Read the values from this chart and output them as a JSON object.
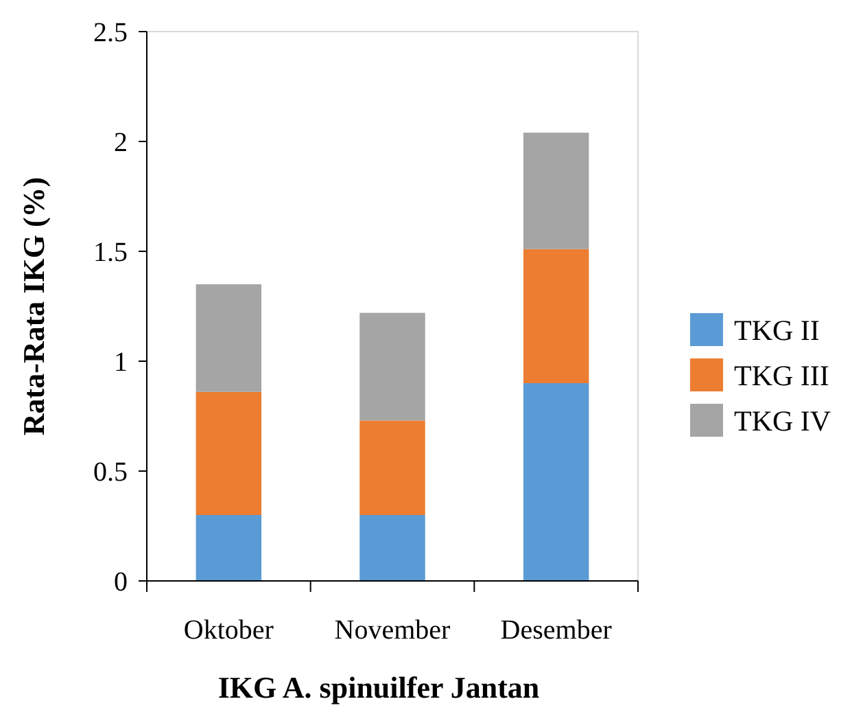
{
  "chart_data": {
    "type": "bar",
    "stacked": true,
    "xlabel": "IKG A. spinuilfer Jantan",
    "ylabel": "Rata-Rata IKG (%)",
    "categories": [
      "Oktober",
      "November",
      "Desember"
    ],
    "series": [
      {
        "name": "TKG II",
        "color": "#5b9bd5",
        "values": [
          0.3,
          0.3,
          0.9
        ]
      },
      {
        "name": "TKG III",
        "color": "#ed7d31",
        "values": [
          0.56,
          0.43,
          0.61
        ]
      },
      {
        "name": "TKG IV",
        "color": "#a5a5a5",
        "values": [
          0.49,
          0.49,
          0.53
        ]
      }
    ],
    "ylim": [
      0,
      2.5
    ],
    "yticks": [
      0,
      0.5,
      1,
      1.5,
      2,
      2.5
    ],
    "grid": false,
    "legend": "right"
  }
}
